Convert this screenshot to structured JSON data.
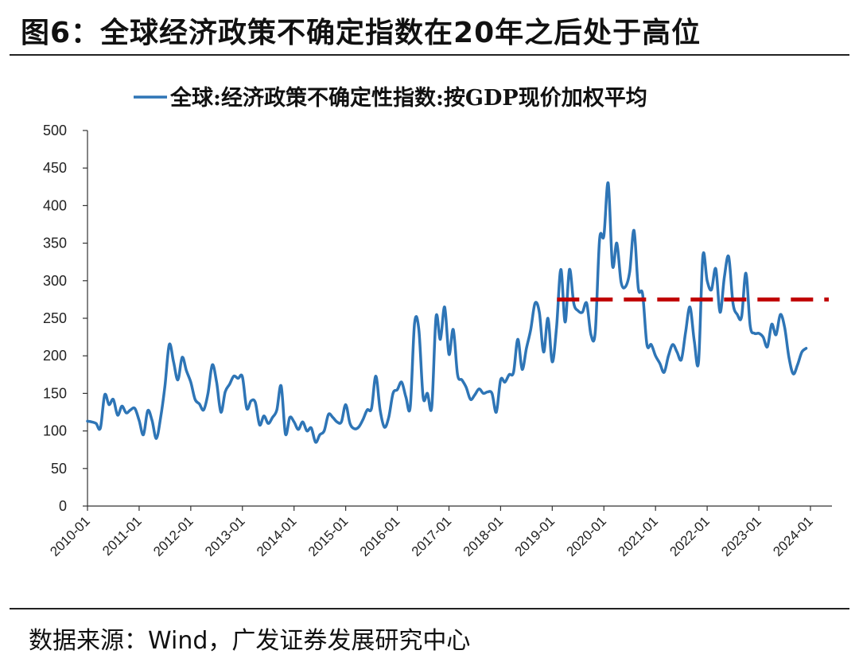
{
  "header": {
    "title": "图6：全球经济政策不确定指数在20年之后处于高位"
  },
  "footer": {
    "source": "数据来源：Wind，广发证券发展研究中心"
  },
  "chart_data": {
    "type": "line",
    "title": "",
    "xlabel": "",
    "ylabel": "",
    "ylim": [
      0,
      500
    ],
    "yticks": [
      0,
      50,
      100,
      150,
      200,
      250,
      300,
      350,
      400,
      450,
      500
    ],
    "xticks": [
      "2010-01",
      "2011-01",
      "2012-01",
      "2013-01",
      "2014-01",
      "2015-01",
      "2016-01",
      "2017-01",
      "2018-01",
      "2019-01",
      "2020-01",
      "2021-01",
      "2022-01",
      "2023-01",
      "2024-01"
    ],
    "grid": false,
    "legend": "top",
    "x_start": "2010-01",
    "x_end": "2024-06",
    "series": [
      {
        "name": "全球:经济政策不确定性指数:按GDP现价加权平均",
        "color": "#2e75b6",
        "values": [
          113,
          112,
          110,
          104,
          148,
          135,
          142,
          121,
          133,
          124,
          128,
          130,
          114,
          95,
          127,
          114,
          90,
          118,
          160,
          215,
          192,
          168,
          198,
          180,
          165,
          142,
          136,
          128,
          150,
          188,
          165,
          125,
          152,
          162,
          173,
          170,
          172,
          130,
          140,
          138,
          108,
          120,
          110,
          118,
          128,
          160,
          96,
          118,
          112,
          102,
          112,
          100,
          104,
          85,
          95,
          100,
          122,
          118,
          112,
          112,
          135,
          110,
          103,
          105,
          115,
          128,
          130,
          173,
          128,
          105,
          118,
          150,
          155,
          165,
          145,
          132,
          243,
          235,
          145,
          150,
          132,
          252,
          222,
          265,
          202,
          235,
          175,
          168,
          158,
          142,
          148,
          156,
          150,
          152,
          150,
          125,
          168,
          165,
          175,
          178,
          222,
          182,
          210,
          235,
          270,
          258,
          205,
          250,
          192,
          238,
          315,
          245,
          315,
          270,
          260,
          258,
          270,
          228,
          232,
          355,
          360,
          430,
          320,
          350,
          298,
          292,
          312,
          367,
          290,
          282,
          215,
          215,
          200,
          190,
          178,
          200,
          215,
          205,
          195,
          232,
          265,
          220,
          192,
          333,
          300,
          288,
          316,
          258,
          305,
          332,
          270,
          255,
          252,
          310,
          240,
          230,
          230,
          225,
          212,
          242,
          228,
          255,
          238,
          198,
          176,
          188,
          205,
          210
        ]
      }
    ],
    "reference_line": {
      "value": 275,
      "start": "2019-01",
      "end": "2024-06",
      "color": "#c00000",
      "style": "dashed"
    }
  }
}
